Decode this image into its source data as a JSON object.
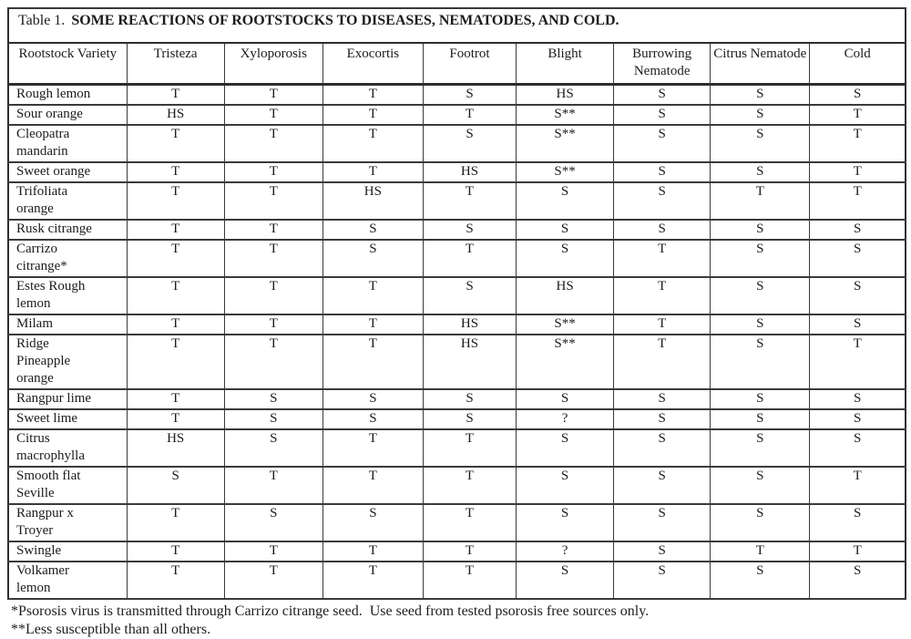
{
  "title": {
    "prefix": "Table 1.",
    "text": "SOME REACTIONS OF ROOTSTOCKS TO DISEASES, NEMATODES, AND COLD."
  },
  "table": {
    "columns": [
      "Rootstock Variety",
      "Tristeza",
      "Xyloporosis",
      "Exocortis",
      "Footrot",
      "Blight",
      "Burrowing Nematode",
      "Citrus Nematode",
      "Cold"
    ],
    "rows": [
      {
        "variety": "Rough lemon",
        "values": [
          "T",
          "T",
          "T",
          "S",
          "HS",
          "S",
          "S",
          "S"
        ]
      },
      {
        "variety": "Sour orange",
        "values": [
          "HS",
          "T",
          "T",
          "T",
          "S**",
          "S",
          "S",
          "T"
        ]
      },
      {
        "variety": "Cleopatra\nmandarin",
        "values": [
          "T",
          "T",
          "T",
          "S",
          "S**",
          "S",
          "S",
          "T"
        ]
      },
      {
        "variety": "Sweet orange",
        "values": [
          "T",
          "T",
          "T",
          "HS",
          "S**",
          "S",
          "S",
          "T"
        ]
      },
      {
        "variety": "Trifoliata\norange",
        "values": [
          "T",
          "T",
          "HS",
          "T",
          "S",
          "S",
          "T",
          "T"
        ]
      },
      {
        "variety": "Rusk citrange",
        "values": [
          "T",
          "T",
          "S",
          "S",
          "S",
          "S",
          "S",
          "S"
        ]
      },
      {
        "variety": "Carrizo\ncitrange*",
        "values": [
          "T",
          "T",
          "S",
          "T",
          "S",
          "T",
          "S",
          "S"
        ]
      },
      {
        "variety": "Estes Rough\nlemon",
        "values": [
          "T",
          "T",
          "T",
          "S",
          "HS",
          "T",
          "S",
          "S"
        ]
      },
      {
        "variety": "Milam",
        "values": [
          "T",
          "T",
          "T",
          "HS",
          "S**",
          "T",
          "S",
          "S"
        ]
      },
      {
        "variety": "Ridge\nPineapple\norange",
        "values": [
          "T",
          "T",
          "T",
          "HS",
          "S**",
          "T",
          "S",
          "T"
        ]
      },
      {
        "variety": "Rangpur lime",
        "values": [
          "T",
          "S",
          "S",
          "S",
          "S",
          "S",
          "S",
          "S"
        ]
      },
      {
        "variety": "Sweet lime",
        "values": [
          "T",
          "S",
          "S",
          "S",
          "?",
          "S",
          "S",
          "S"
        ]
      },
      {
        "variety": "Citrus\nmacrophylla",
        "values": [
          "HS",
          "S",
          "T",
          "T",
          "S",
          "S",
          "S",
          "S"
        ]
      },
      {
        "variety": "Smooth flat\nSeville",
        "values": [
          "S",
          "T",
          "T",
          "T",
          "S",
          "S",
          "S",
          "T"
        ]
      },
      {
        "variety": "Rangpur x\nTroyer",
        "values": [
          "T",
          "S",
          "S",
          "T",
          "S",
          "S",
          "S",
          "S"
        ]
      },
      {
        "variety": "Swingle",
        "values": [
          "T",
          "T",
          "T",
          "T",
          "?",
          "S",
          "T",
          "T"
        ]
      },
      {
        "variety": "Volkamer\nlemon",
        "values": [
          "T",
          "T",
          "T",
          "T",
          "S",
          "S",
          "S",
          "S"
        ]
      }
    ]
  },
  "footnotes": [
    "*Psorosis virus is transmitted through Carrizo citrange seed.  Use seed from tested psorosis free sources only.",
    "**Less susceptible than all others."
  ],
  "legend_colors": {
    "text": "#1c1c1c",
    "border": "#2e2e2e",
    "background": "#ffffff"
  }
}
